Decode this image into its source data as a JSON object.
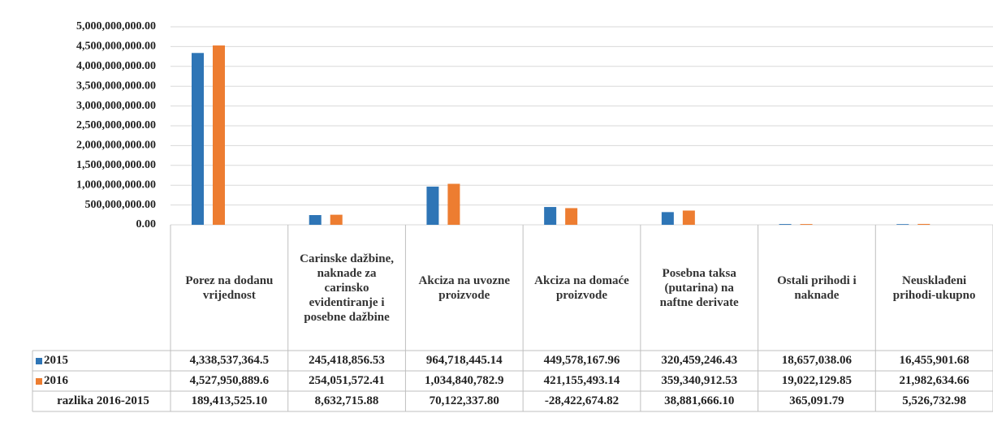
{
  "chart_data": {
    "type": "bar",
    "categories": [
      "Porez na dodanu vrijednost",
      "Carinske dažbine, naknade za carinsko evidentiranje i posebne dažbine",
      "Akciza na uvozne proizvode",
      "Akciza na domaće proizvode",
      "Posebna taksa (putarina) na naftne derivate",
      "Ostali prihodi i naknade",
      "Neusklađeni prihodi-ukupno"
    ],
    "series": [
      {
        "name": "2015",
        "color": "#2e75b6",
        "values": [
          4338537364.5,
          245418856.53,
          964718445.14,
          449578167.96,
          320459246.43,
          18657038.06,
          16455901.68
        ],
        "value_labels": [
          "4,338,537,364.5",
          "245,418,856.53",
          "964,718,445.14",
          "449,578,167.96",
          "320,459,246.43",
          "18,657,038.06",
          "16,455,901.68"
        ]
      },
      {
        "name": "2016",
        "color": "#ed7d31",
        "values": [
          4527950889.6,
          254051572.41,
          1034840782.9,
          421155493.14,
          359340912.53,
          19022129.85,
          21982634.66
        ],
        "value_labels": [
          "4,527,950,889.6",
          "254,051,572.41",
          "1,034,840,782.9",
          "421,155,493.14",
          "359,340,912.53",
          "19,022,129.85",
          "21,982,634.66"
        ]
      }
    ],
    "difference": {
      "name": "razlika 2016-2015",
      "values": [
        "189,413,525.10",
        "8,632,715.88",
        "70,122,337.80",
        "-28,422,674.82",
        "38,881,666.10",
        "365,091.79",
        "5,526,732.98"
      ]
    },
    "ylim": [
      0,
      5000000000
    ],
    "yticks": [
      {
        "value": 0,
        "label": "0.00"
      },
      {
        "value": 500000000,
        "label": "500,000,000.00"
      },
      {
        "value": 1000000000,
        "label": "1,000,000,000.00"
      },
      {
        "value": 1500000000,
        "label": "1,500,000,000.00"
      },
      {
        "value": 2000000000,
        "label": "2,000,000,000.00"
      },
      {
        "value": 2500000000,
        "label": "2,500,000,000.00"
      },
      {
        "value": 3000000000,
        "label": "3,000,000,000.00"
      },
      {
        "value": 3500000000,
        "label": "3,500,000,000.00"
      },
      {
        "value": 4000000000,
        "label": "4,000,000,000.00"
      },
      {
        "value": 4500000000,
        "label": "4,500,000,000.00"
      },
      {
        "value": 5000000000,
        "label": "5,000,000,000.00"
      }
    ],
    "grid": true
  }
}
